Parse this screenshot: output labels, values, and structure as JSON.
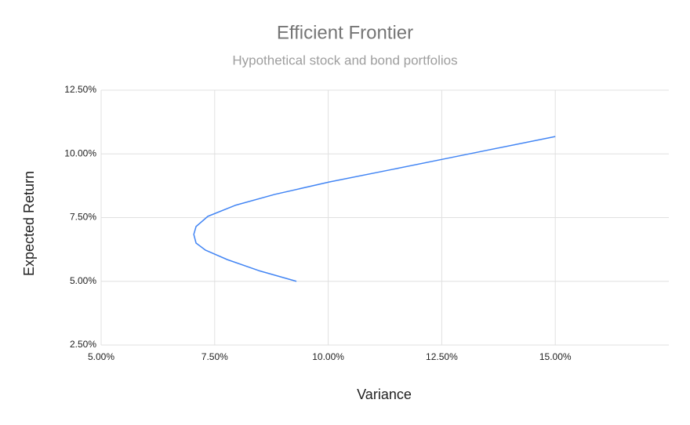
{
  "chart_data": {
    "type": "line",
    "title": "Efficient Frontier",
    "subtitle": "Hypothetical stock and bond portfolios",
    "x_label": "Variance",
    "y_label": "Expected Return",
    "x": [
      9.3,
      8.47,
      7.78,
      7.3,
      7.09,
      7.04,
      7.09,
      7.35,
      7.95,
      8.82,
      10.03,
      11.41,
      13.13,
      15.0
    ],
    "series": [
      {
        "color": "#4285f4",
        "values": [
          5.0,
          5.42,
          5.85,
          6.22,
          6.5,
          6.84,
          7.15,
          7.55,
          7.98,
          8.41,
          8.9,
          9.39,
          10.01,
          10.68
        ]
      }
    ],
    "xlim": [
      5,
      17.5
    ],
    "ylim": [
      2.5,
      12.5
    ],
    "xticks": [
      {
        "value": 5,
        "label": "5.00%"
      },
      {
        "value": 7.5,
        "label": "7.50%"
      },
      {
        "value": 10,
        "label": "10.00%"
      },
      {
        "value": 12.5,
        "label": "12.50%"
      },
      {
        "value": 15,
        "label": "15.00%"
      }
    ],
    "yticks": [
      {
        "value": 2.5,
        "label": "2.50%"
      },
      {
        "value": 5,
        "label": "5.00%"
      },
      {
        "value": 7.5,
        "label": "7.50%"
      },
      {
        "value": 10,
        "label": "10.00%"
      },
      {
        "value": 12.5,
        "label": "12.50%"
      }
    ],
    "grid": true
  }
}
